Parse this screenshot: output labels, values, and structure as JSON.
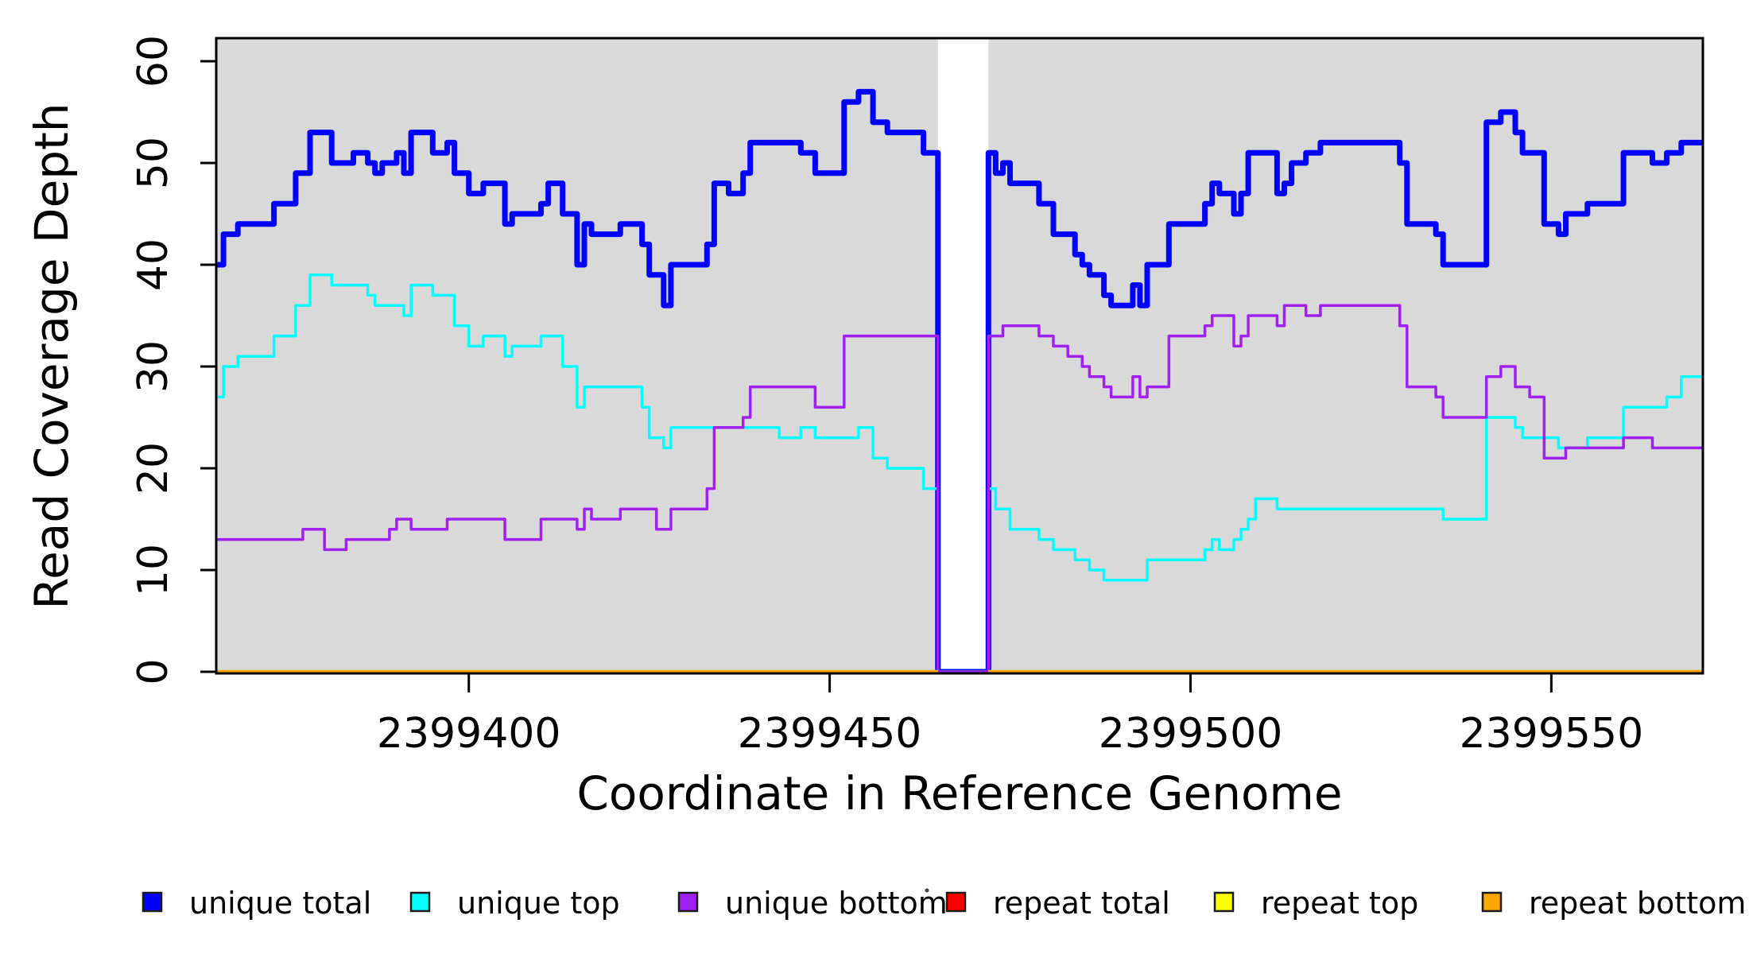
{
  "figure": {
    "background": "#FFFFFF",
    "plot_background": "#D9D9D9",
    "no_data_band_color": "#FFFFFF",
    "frame_color": "#000000"
  },
  "chart_data": {
    "type": "line",
    "subtype": "step-coverage",
    "title": "",
    "xlabel": "Coordinate in Reference Genome",
    "ylabel": "Read Coverage Depth",
    "xlim": [
      2399365,
      2399571
    ],
    "ylim": [
      0,
      62
    ],
    "grid": "off",
    "legend_position": "bottom",
    "x_ticks": [
      2399400,
      2399450,
      2399500,
      2399550
    ],
    "x_tick_labels": [
      "2399400",
      "2399450",
      "2399500",
      "2399550"
    ],
    "y_ticks": [
      0,
      10,
      20,
      30,
      40,
      50,
      60
    ],
    "y_tick_labels": [
      "0",
      "10",
      "20",
      "30",
      "40",
      "50",
      "60"
    ],
    "no_data_region": [
      2399465,
      2399472
    ],
    "series": [
      {
        "name": "unique total",
        "color": "#0000FF",
        "width": 7,
        "segments": [
          [
            [
              2399365,
              40
            ],
            [
              2399366,
              43
            ],
            [
              2399368,
              44
            ],
            [
              2399373,
              46
            ],
            [
              2399376,
              49
            ],
            [
              2399378,
              53
            ],
            [
              2399381,
              50
            ],
            [
              2399384,
              51
            ],
            [
              2399386,
              50
            ],
            [
              2399387,
              49
            ],
            [
              2399388,
              50
            ],
            [
              2399390,
              51
            ],
            [
              2399391,
              49
            ],
            [
              2399392,
              53
            ],
            [
              2399395,
              51
            ],
            [
              2399397,
              52
            ],
            [
              2399398,
              49
            ],
            [
              2399400,
              47
            ],
            [
              2399402,
              48
            ],
            [
              2399405,
              44
            ],
            [
              2399406,
              45
            ],
            [
              2399410,
              46
            ],
            [
              2399411,
              48
            ],
            [
              2399413,
              45
            ],
            [
              2399415,
              40
            ],
            [
              2399416,
              44
            ],
            [
              2399417,
              43
            ],
            [
              2399421,
              44
            ],
            [
              2399424,
              42
            ],
            [
              2399425,
              39
            ],
            [
              2399427,
              36
            ],
            [
              2399428,
              40
            ],
            [
              2399433,
              42
            ],
            [
              2399434,
              48
            ],
            [
              2399436,
              47
            ],
            [
              2399438,
              49
            ],
            [
              2399439,
              52
            ],
            [
              2399446,
              51
            ],
            [
              2399448,
              49
            ],
            [
              2399452,
              56
            ],
            [
              2399454,
              57
            ],
            [
              2399456,
              54
            ],
            [
              2399458,
              53
            ],
            [
              2399463,
              51
            ],
            [
              2399465,
              0
            ],
            [
              2399472,
              51
            ],
            [
              2399473,
              49
            ],
            [
              2399474,
              50
            ],
            [
              2399475,
              48
            ],
            [
              2399479,
              46
            ],
            [
              2399481,
              43
            ],
            [
              2399484,
              41
            ],
            [
              2399485,
              40
            ],
            [
              2399486,
              39
            ],
            [
              2399488,
              37
            ],
            [
              2399489,
              36
            ],
            [
              2399492,
              38
            ],
            [
              2399493,
              36
            ],
            [
              2399494,
              40
            ],
            [
              2399497,
              44
            ],
            [
              2399502,
              46
            ],
            [
              2399503,
              48
            ],
            [
              2399504,
              47
            ],
            [
              2399506,
              45
            ],
            [
              2399507,
              47
            ],
            [
              2399508,
              51
            ],
            [
              2399512,
              47
            ],
            [
              2399513,
              48
            ],
            [
              2399514,
              50
            ],
            [
              2399516,
              51
            ],
            [
              2399518,
              52
            ],
            [
              2399529,
              50
            ],
            [
              2399530,
              44
            ],
            [
              2399534,
              43
            ],
            [
              2399535,
              40
            ],
            [
              2399541,
              54
            ],
            [
              2399543,
              55
            ],
            [
              2399545,
              53
            ],
            [
              2399546,
              51
            ],
            [
              2399549,
              44
            ],
            [
              2399551,
              43
            ],
            [
              2399552,
              45
            ],
            [
              2399555,
              46
            ],
            [
              2399560,
              51
            ],
            [
              2399564,
              50
            ],
            [
              2399566,
              51
            ],
            [
              2399568,
              52
            ],
            [
              2399571,
              52
            ]
          ]
        ]
      },
      {
        "name": "unique top",
        "color": "#00FFFF",
        "width": 3.5,
        "segments": [
          [
            [
              2399365,
              27
            ],
            [
              2399366,
              30
            ],
            [
              2399368,
              31
            ],
            [
              2399373,
              33
            ],
            [
              2399376,
              36
            ],
            [
              2399378,
              39
            ],
            [
              2399381,
              38
            ],
            [
              2399386,
              37
            ],
            [
              2399387,
              36
            ],
            [
              2399391,
              35
            ],
            [
              2399392,
              38
            ],
            [
              2399395,
              37
            ],
            [
              2399398,
              34
            ],
            [
              2399400,
              32
            ],
            [
              2399402,
              33
            ],
            [
              2399405,
              31
            ],
            [
              2399406,
              32
            ],
            [
              2399410,
              33
            ],
            [
              2399413,
              30
            ],
            [
              2399415,
              26
            ],
            [
              2399416,
              28
            ],
            [
              2399424,
              26
            ],
            [
              2399425,
              23
            ],
            [
              2399427,
              22
            ],
            [
              2399428,
              24
            ],
            [
              2399443,
              23
            ],
            [
              2399446,
              24
            ],
            [
              2399448,
              23
            ],
            [
              2399454,
              24
            ],
            [
              2399456,
              21
            ],
            [
              2399458,
              20
            ],
            [
              2399463,
              18
            ],
            [
              2399465,
              0
            ],
            [
              2399472,
              18
            ],
            [
              2399473,
              16
            ],
            [
              2399475,
              14
            ],
            [
              2399479,
              13
            ],
            [
              2399481,
              12
            ],
            [
              2399484,
              11
            ],
            [
              2399486,
              10
            ],
            [
              2399488,
              9
            ],
            [
              2399492,
              9
            ],
            [
              2399494,
              11
            ],
            [
              2399502,
              12
            ],
            [
              2399503,
              13
            ],
            [
              2399504,
              12
            ],
            [
              2399506,
              13
            ],
            [
              2399507,
              14
            ],
            [
              2399508,
              15
            ],
            [
              2399509,
              17
            ],
            [
              2399512,
              16
            ],
            [
              2399519,
              16
            ],
            [
              2399535,
              15
            ],
            [
              2399541,
              25
            ],
            [
              2399545,
              24
            ],
            [
              2399546,
              23
            ],
            [
              2399551,
              22
            ],
            [
              2399555,
              23
            ],
            [
              2399560,
              26
            ],
            [
              2399566,
              27
            ],
            [
              2399568,
              29
            ],
            [
              2399571,
              29
            ]
          ]
        ]
      },
      {
        "name": "unique bottom",
        "color": "#A020F0",
        "width": 3.5,
        "segments": [
          [
            [
              2399365,
              13
            ],
            [
              2399377,
              14
            ],
            [
              2399380,
              12
            ],
            [
              2399383,
              13
            ],
            [
              2399389,
              14
            ],
            [
              2399390,
              15
            ],
            [
              2399392,
              14
            ],
            [
              2399397,
              15
            ],
            [
              2399405,
              13
            ],
            [
              2399410,
              15
            ],
            [
              2399415,
              14
            ],
            [
              2399416,
              16
            ],
            [
              2399417,
              15
            ],
            [
              2399421,
              16
            ],
            [
              2399426,
              14
            ],
            [
              2399428,
              16
            ],
            [
              2399433,
              18
            ],
            [
              2399434,
              24
            ],
            [
              2399438,
              25
            ],
            [
              2399439,
              28
            ],
            [
              2399448,
              26
            ],
            [
              2399452,
              33
            ],
            [
              2399465,
              0
            ],
            [
              2399472,
              33
            ],
            [
              2399474,
              34
            ],
            [
              2399479,
              33
            ],
            [
              2399481,
              32
            ],
            [
              2399483,
              31
            ],
            [
              2399485,
              30
            ],
            [
              2399486,
              29
            ],
            [
              2399488,
              28
            ],
            [
              2399489,
              27
            ],
            [
              2399492,
              29
            ],
            [
              2399493,
              27
            ],
            [
              2399494,
              28
            ],
            [
              2399497,
              33
            ],
            [
              2399502,
              34
            ],
            [
              2399503,
              35
            ],
            [
              2399506,
              32
            ],
            [
              2399507,
              33
            ],
            [
              2399508,
              35
            ],
            [
              2399512,
              34
            ],
            [
              2399513,
              36
            ],
            [
              2399516,
              35
            ],
            [
              2399518,
              36
            ],
            [
              2399529,
              34
            ],
            [
              2399530,
              28
            ],
            [
              2399534,
              27
            ],
            [
              2399535,
              25
            ],
            [
              2399541,
              29
            ],
            [
              2399543,
              30
            ],
            [
              2399545,
              28
            ],
            [
              2399547,
              27
            ],
            [
              2399549,
              21
            ],
            [
              2399552,
              22
            ],
            [
              2399560,
              23
            ],
            [
              2399564,
              22
            ],
            [
              2399571,
              22
            ]
          ]
        ]
      },
      {
        "name": "repeat total",
        "color": "#FF0000",
        "width": 4,
        "segments": [
          [
            [
              2399365,
              0
            ],
            [
              2399465,
              0
            ]
          ],
          [
            [
              2399472,
              0
            ],
            [
              2399571,
              0
            ]
          ]
        ]
      },
      {
        "name": "repeat top",
        "color": "#FFFF00",
        "width": 4,
        "segments": [
          [
            [
              2399365,
              0
            ],
            [
              2399465,
              0
            ]
          ],
          [
            [
              2399472,
              0
            ],
            [
              2399571,
              0
            ]
          ]
        ]
      },
      {
        "name": "repeat bottom",
        "color": "#FFA500",
        "width": 4.5,
        "segments": [
          [
            [
              2399365,
              0
            ],
            [
              2399465,
              0
            ]
          ],
          [
            [
              2399472,
              0
            ],
            [
              2399571,
              0
            ]
          ]
        ]
      }
    ]
  },
  "legend": {
    "items": [
      {
        "label": "unique total",
        "color": "#0000FF"
      },
      {
        "label": "unique top",
        "color": "#00FFFF"
      },
      {
        "label": "unique bottom",
        "color": "#A020F0"
      },
      {
        "label": "repeat total",
        "color": "#FF0000"
      },
      {
        "label": "repeat top",
        "color": "#FFFF00"
      },
      {
        "label": "repeat bottom",
        "color": "#FFA500"
      }
    ]
  }
}
